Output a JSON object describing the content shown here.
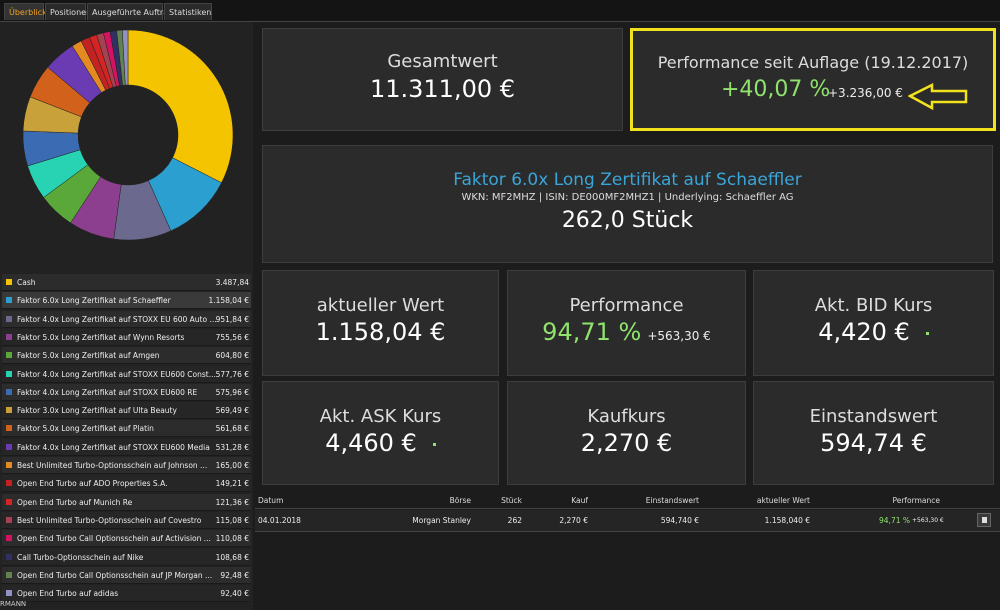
{
  "tabs": [
    "Überblick",
    "Positionen",
    "Ausgeführte Aufträge",
    "Statistiken"
  ],
  "holdings": [
    {
      "name": "Cash",
      "color": "#f5c400",
      "amount": {
        "value": 3487.84,
        "label": "3.487,84"
      }
    },
    {
      "name": "Faktor 6.0x Long Zertifikat auf Schaeffler",
      "color": "#2b9fd0",
      "amount": {
        "value": 1158.04,
        "label": "1.158,04 €"
      }
    },
    {
      "name": "Faktor 4.0x Long Zertifikat auf STOXX EU 600 Auto ...",
      "color": "#6b6a8e",
      "amount": {
        "value": 951.84,
        "label": "951,84 €"
      }
    },
    {
      "name": "Faktor 5.0x Long Zertifikat auf Wynn Resorts",
      "color": "#8c3f8f",
      "amount": {
        "value": 755.56,
        "label": "755,56 €"
      }
    },
    {
      "name": "Faktor 5.0x Long Zertifikat auf Amgen",
      "color": "#5aa83a",
      "amount": {
        "value": 604.8,
        "label": "604,80 €"
      }
    },
    {
      "name": "Faktor 4.0x Long Zertifikat auf STOXX EU600 Const...",
      "color": "#27d3b3",
      "amount": {
        "value": 577.76,
        "label": "577,76 €"
      }
    },
    {
      "name": "Faktor 4.0x Long Zertifikat auf STOXX EU600 RE",
      "color": "#3b6cb3",
      "amount": {
        "value": 575.96,
        "label": "575,96 €"
      }
    },
    {
      "name": "Faktor 3.0x Long Zertifikat auf Ulta Beauty",
      "color": "#c9a13b",
      "amount": {
        "value": 569.49,
        "label": "569,49 €"
      }
    },
    {
      "name": "Faktor 5.0x Long Zertifikat auf Platin",
      "color": "#d2611b",
      "amount": {
        "value": 561.68,
        "label": "561,68 €"
      }
    },
    {
      "name": "Faktor 4.0x Long Zertifikat auf STOXX EU600 Media",
      "color": "#6b3bb3",
      "amount": {
        "value": 531.28,
        "label": "531,28 €"
      }
    },
    {
      "name": "Best Unlimited Turbo-Optionsschein auf Johnson ...",
      "color": "#e38b22",
      "amount": {
        "value": 165.0,
        "label": "165,00 €"
      }
    },
    {
      "name": "Open End Turbo auf ADO Properties S.A.",
      "color": "#c22222",
      "amount": {
        "value": 149.21,
        "label": "149,21 €"
      }
    },
    {
      "name": "Open End Turbo auf Munich Re",
      "color": "#d42424",
      "amount": {
        "value": 121.36,
        "label": "121,36 €"
      }
    },
    {
      "name": "Best Unlimited Turbo-Optionsschein auf Covestro",
      "color": "#a44252",
      "amount": {
        "value": 115.08,
        "label": "115,08 €"
      }
    },
    {
      "name": "Open End Turbo Call Optionsschein auf Activision ...",
      "color": "#d31262",
      "amount": {
        "value": 110.08,
        "label": "110,08 €"
      }
    },
    {
      "name": "Call Turbo-Optionsschein auf Nike",
      "color": "#303062",
      "amount": {
        "value": 108.68,
        "label": "108,68 €"
      }
    },
    {
      "name": "Open End Turbo Call Optionsschein auf JP Morgan ...",
      "color": "#628252",
      "amount": {
        "value": 92.48,
        "label": "92,48 €"
      }
    },
    {
      "name": "Open End Turbo auf adidas",
      "color": "#9292c2",
      "amount": {
        "value": 92.4,
        "label": "92,40 €"
      }
    }
  ],
  "footer_fragment": "RMANN",
  "summary": {
    "total": {
      "title": "Gesamtwert",
      "value": "11.311,00 €"
    },
    "performance": {
      "title": "Performance seit Auflage (19.12.2017)",
      "percent": "+40,07 %",
      "amount": "+3.236,00 €",
      "color": "#8fe36d"
    }
  },
  "instrument": {
    "title": "Faktor 6.0x Long Zertifikat auf Schaeffler",
    "subtitle": "WKN: MF2MHZ | ISIN: DE000MF2MHZ1 | Underlying: Schaeffler AG",
    "quantity": "262,0 Stück"
  },
  "metrics": [
    {
      "title": "aktueller Wert",
      "value": "1.158,04 €"
    },
    {
      "title": "Performance",
      "value": "94,71 %",
      "change": "+563,30 €",
      "color": "#8fe36d"
    },
    {
      "title": "Akt. BID Kurs",
      "value": "4,420 €"
    },
    {
      "title": "Akt. ASK Kurs",
      "value": "4,460 €"
    },
    {
      "title": "Kaufkurs",
      "value": "2,270 €"
    },
    {
      "title": "Einstandswert",
      "value": "594,74 €"
    }
  ],
  "trades": {
    "columns": [
      "Datum",
      "Börse",
      "Stück",
      "Kauf",
      "Einstandswert",
      "aktueller Wert",
      "Performance"
    ],
    "rows": [
      [
        "04.01.2018",
        "Morgan Stanley",
        "262",
        "2,270 €",
        "594,740 €",
        "1.158,040 €",
        "94,71 %",
        "+563,30 €"
      ]
    ]
  }
}
